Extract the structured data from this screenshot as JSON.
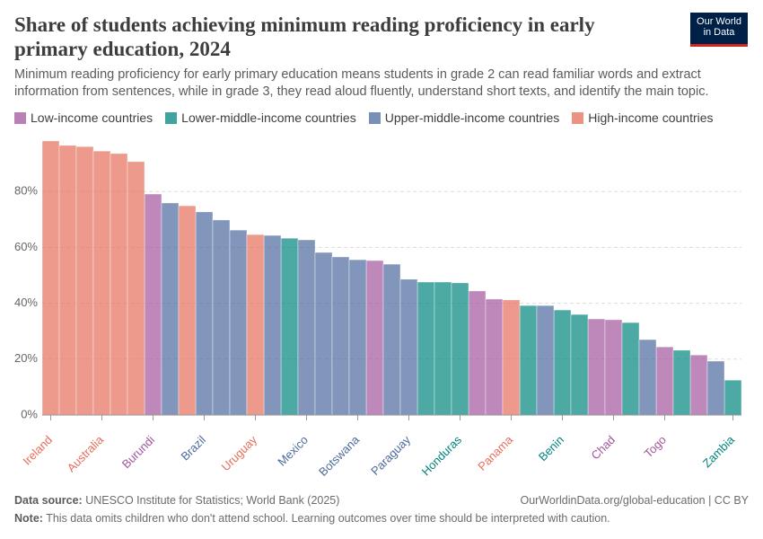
{
  "header": {
    "title": "Share of students achieving minimum reading proficiency in early primary education, 2024",
    "subtitle": "Minimum reading proficiency for early primary education means students in grade 2 can read familiar words and extract information from sentences, while in grade 3, they read aloud fluently, understand short texts, and identify the main topic.",
    "logo": [
      "Our World",
      "in Data"
    ]
  },
  "chart_data": {
    "type": "bar",
    "categories": [
      "Ireland",
      null,
      null,
      "Australia",
      null,
      null,
      "Burundi",
      null,
      null,
      "Brazil",
      null,
      null,
      "Uruguay",
      null,
      null,
      "Mexico",
      null,
      null,
      "Botswana",
      null,
      null,
      "Paraguay",
      null,
      null,
      "Honduras",
      null,
      null,
      "Panama",
      null,
      null,
      "Benin",
      null,
      null,
      "Chad",
      null,
      null,
      "Togo",
      null,
      null,
      null,
      "Zambia"
    ],
    "series": [
      {
        "name": "Low-income countries",
        "color": "#a2559c",
        "values": [
          null,
          null,
          null,
          null,
          null,
          null,
          79.1,
          null,
          null,
          null,
          null,
          null,
          null,
          null,
          null,
          null,
          null,
          null,
          null,
          55.3,
          null,
          null,
          null,
          null,
          null,
          44.4,
          41.5,
          null,
          null,
          null,
          null,
          null,
          34.4,
          34.1,
          null,
          null,
          24.4,
          null,
          21.5,
          null,
          null
        ]
      },
      {
        "name": "Lower-middle-income countries",
        "color": "#00847e",
        "values": [
          null,
          null,
          null,
          null,
          null,
          null,
          null,
          null,
          null,
          null,
          null,
          null,
          null,
          null,
          63.3,
          null,
          null,
          null,
          null,
          null,
          null,
          null,
          47.6,
          47.6,
          47.3,
          null,
          null,
          null,
          39.2,
          null,
          37.6,
          36.0,
          null,
          null,
          33.1,
          null,
          null,
          23.2,
          null,
          null,
          12.5
        ]
      },
      {
        "name": "Upper-middle-income countries",
        "color": "#4c6a9c",
        "values": [
          null,
          null,
          null,
          null,
          null,
          null,
          null,
          75.9,
          null,
          72.7,
          69.8,
          66.2,
          null,
          64.3,
          null,
          62.7,
          58.2,
          56.6,
          55.6,
          null,
          54.0,
          48.6,
          null,
          null,
          null,
          null,
          null,
          null,
          null,
          39.2,
          null,
          null,
          null,
          null,
          null,
          27.0,
          null,
          null,
          null,
          19.3,
          null
        ]
      },
      {
        "name": "High-income countries",
        "color": "#e56e5a",
        "values": [
          98.1,
          96.5,
          96.1,
          94.5,
          93.6,
          90.7,
          null,
          null,
          74.9,
          null,
          null,
          null,
          64.6,
          null,
          null,
          null,
          null,
          null,
          null,
          null,
          null,
          null,
          null,
          null,
          null,
          null,
          null,
          41.2,
          null,
          null,
          null,
          null,
          null,
          null,
          null,
          null,
          null,
          null,
          null,
          null,
          null
        ]
      }
    ],
    "ylim": [
      0,
      100
    ],
    "yticks": [
      {
        "value": 0,
        "label": "0%"
      },
      {
        "value": 20,
        "label": "20%"
      },
      {
        "value": 40,
        "label": "40%"
      },
      {
        "value": 60,
        "label": "60%"
      },
      {
        "value": 80,
        "label": "80%"
      }
    ],
    "grid": true
  },
  "footer": {
    "source_label": "Data source:",
    "source": "UNESCO Institute for Statistics; World Bank (2025)",
    "url": "OurWorldinData.org/global-education | CC BY",
    "note_label": "Note:",
    "note": "This data omits children who don't attend school. Learning outcomes over time should be interpreted with caution."
  }
}
